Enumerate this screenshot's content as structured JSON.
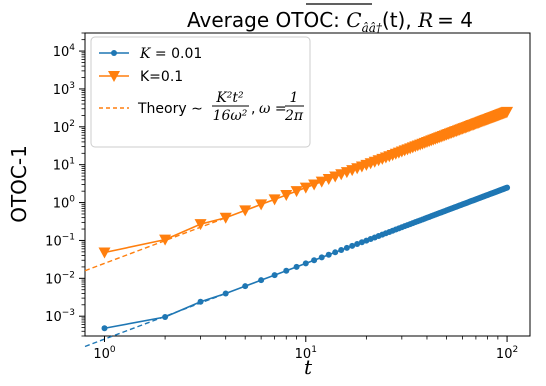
{
  "chart_data": {
    "type": "line",
    "title": "Average OTOC: C_{ââ†}(t), R = 4",
    "title_parts": {
      "prefix": "Average OTOC: ",
      "symbol": "C",
      "subscript": "ââ†",
      "arg": "(t), ",
      "r_label": "R",
      "r_value": "= 4"
    },
    "xlabel": "t",
    "ylabel": "OTOC-1",
    "xscale": "log",
    "yscale": "log",
    "xlim": [
      0.8,
      130
    ],
    "ylim": [
      0.0003,
      30000
    ],
    "x_ticks": [
      {
        "value": 1,
        "base": "10",
        "exp": "0"
      },
      {
        "value": 10,
        "base": "10",
        "exp": "1"
      },
      {
        "value": 100,
        "base": "10",
        "exp": "2"
      }
    ],
    "y_ticks": [
      {
        "value": 0.001,
        "base": "10",
        "exp": "−3"
      },
      {
        "value": 0.01,
        "base": "10",
        "exp": "−2"
      },
      {
        "value": 0.1,
        "base": "10",
        "exp": "−1"
      },
      {
        "value": 1,
        "base": "10",
        "exp": "0"
      },
      {
        "value": 10,
        "base": "10",
        "exp": "1"
      },
      {
        "value": 100,
        "base": "10",
        "exp": "2"
      },
      {
        "value": 1000,
        "base": "10",
        "exp": "3"
      },
      {
        "value": 10000,
        "base": "10",
        "exp": "4"
      }
    ],
    "legend_position": "top-left",
    "series": [
      {
        "name": "K = 0.01",
        "name_parts": {
          "var": "K",
          "rest": " = 0.01"
        },
        "color": "#1f77b4",
        "marker": "circle",
        "style": "solid",
        "x_range": [
          1,
          100
        ],
        "formula_coefficient": 0.000248,
        "low_t_points": [
          {
            "x": 1,
            "y": 0.00048
          },
          {
            "x": 2,
            "y": 0.00095
          },
          {
            "x": 3,
            "y": 0.0024
          }
        ]
      },
      {
        "name": "K=0.1",
        "color": "#ff7f0e",
        "marker": "triangle-down",
        "style": "solid",
        "x_range": [
          1,
          100
        ],
        "formula_coefficient": 0.0248,
        "low_t_points": [
          {
            "x": 1,
            "y": 0.048
          },
          {
            "x": 2,
            "y": 0.105
          },
          {
            "x": 3,
            "y": 0.27
          }
        ]
      },
      {
        "name": "Theory ∼ K²t² / 16ω², ω = 1/2π",
        "name_parts": {
          "prefix": "Theory ∼",
          "num": "K²t²",
          "den": "16ω²",
          "omega": "ω =",
          "omega_num": "1",
          "omega_den": "2π"
        },
        "colors": [
          "#ff7f0e",
          "#1f77b4"
        ],
        "style": "dashed",
        "x_range": [
          0.8,
          4
        ]
      }
    ]
  }
}
